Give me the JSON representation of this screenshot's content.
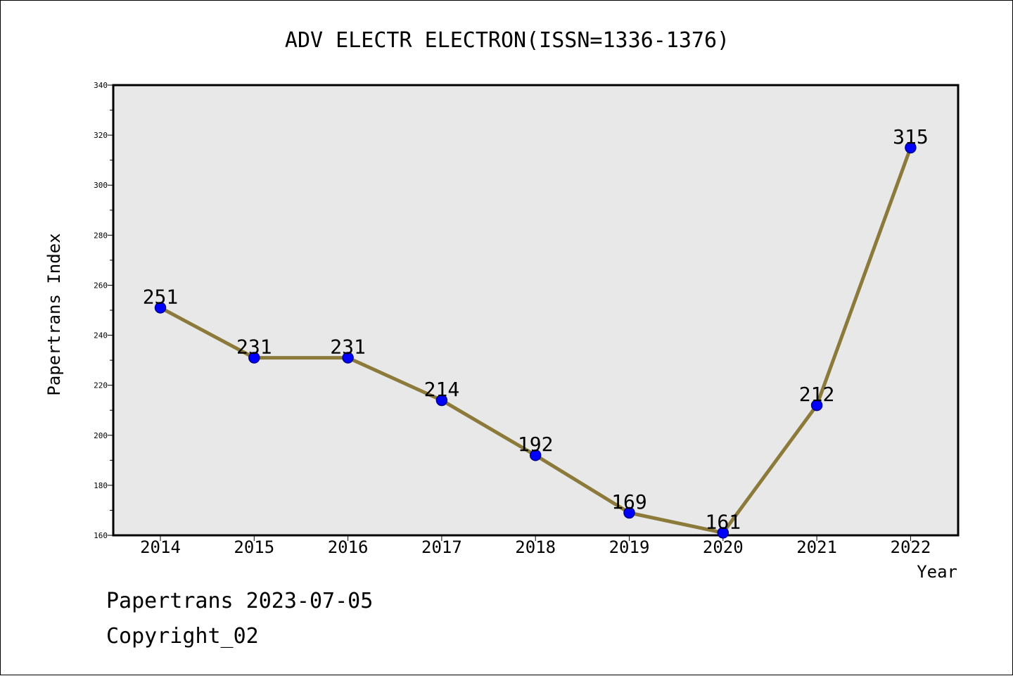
{
  "chart_data": {
    "type": "line",
    "title": "ADV ELECTR ELECTRON(ISSN=1336-1376)",
    "xlabel": "Year",
    "ylabel": "Papertrans Index",
    "categories": [
      "2014",
      "2015",
      "2016",
      "2017",
      "2018",
      "2019",
      "2020",
      "2021",
      "2022"
    ],
    "values": [
      251,
      231,
      231,
      214,
      192,
      169,
      161,
      212,
      315
    ],
    "data_labels": [
      "251",
      "231",
      "231",
      "214",
      "192",
      "169",
      "161",
      "212",
      "315"
    ],
    "ylim": [
      160,
      340
    ],
    "yticks": [
      160,
      180,
      200,
      220,
      240,
      260,
      280,
      300,
      320,
      340
    ],
    "ytick_labels": [
      "160",
      "180",
      "200",
      "220",
      "240",
      "260",
      "280",
      "300",
      "320",
      "340"
    ],
    "grid": false,
    "colors": {
      "line": "#8b7a3a",
      "marker_fill": "#0000ff",
      "marker_edge": "#00008b",
      "plot_background": "#e8e8e8"
    }
  },
  "footer": {
    "line1": "Papertrans 2023-07-05",
    "line2": "Copyright_02"
  }
}
